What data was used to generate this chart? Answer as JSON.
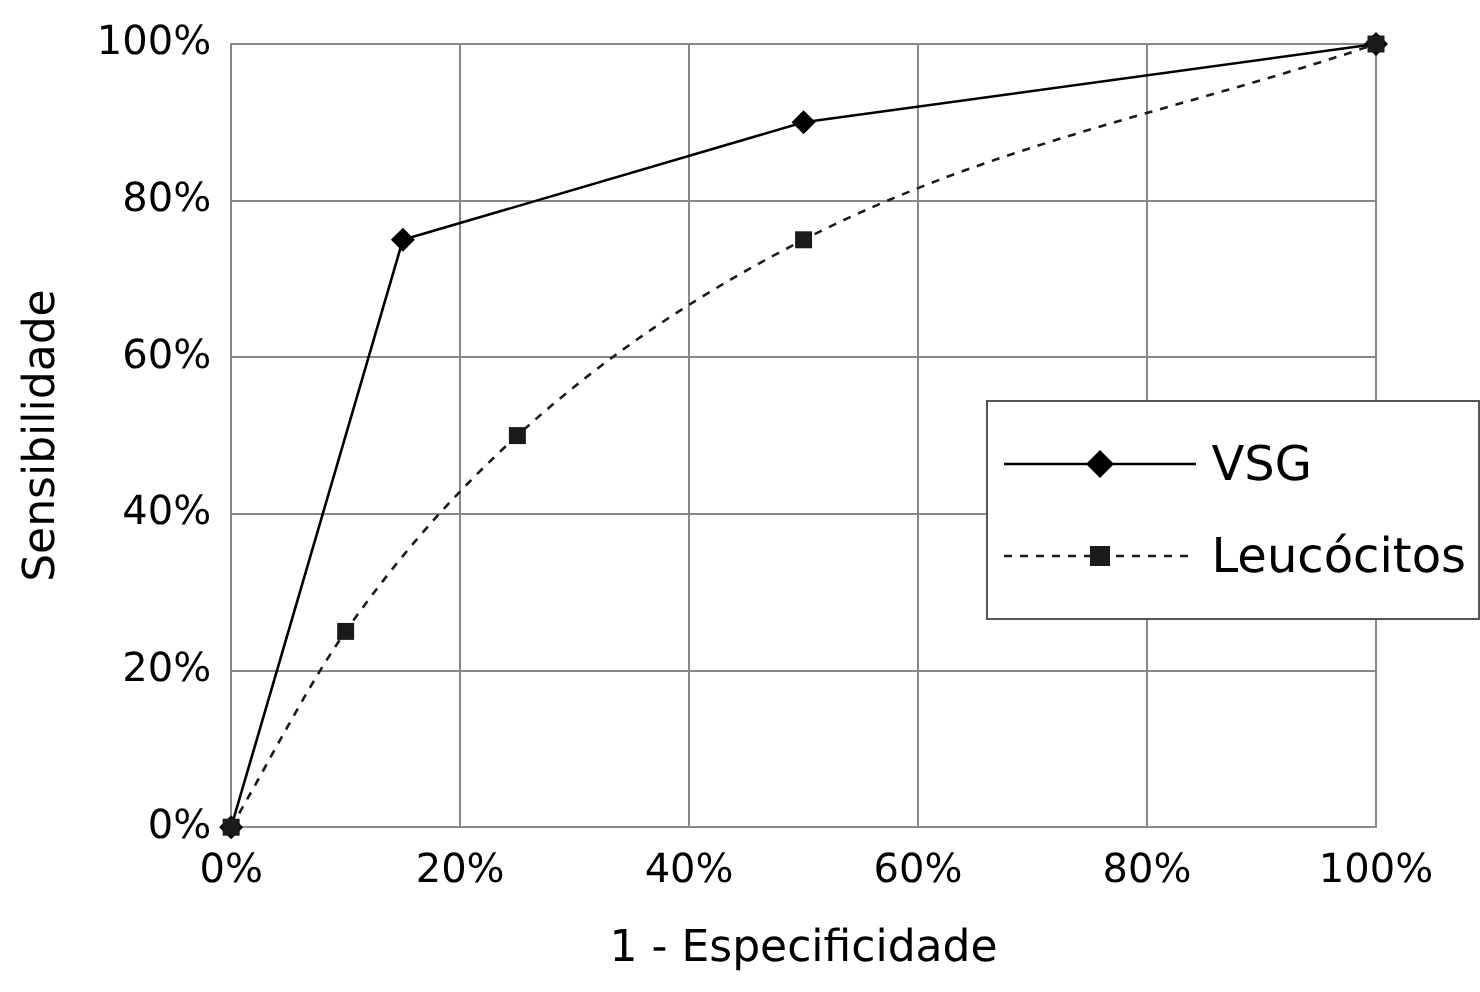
{
  "chart_data": {
    "type": "line",
    "xlabel": "1 - Especificidade",
    "ylabel": "Sensibilidade",
    "xlim": [
      0,
      100
    ],
    "ylim": [
      0,
      100
    ],
    "xticks": [
      {
        "value": 0,
        "label": "0%"
      },
      {
        "value": 20,
        "label": "20%"
      },
      {
        "value": 40,
        "label": "40%"
      },
      {
        "value": 60,
        "label": "60%"
      },
      {
        "value": 80,
        "label": "80%"
      },
      {
        "value": 100,
        "label": "100%"
      }
    ],
    "yticks": [
      {
        "value": 0,
        "label": "0%"
      },
      {
        "value": 20,
        "label": "20%"
      },
      {
        "value": 40,
        "label": "40%"
      },
      {
        "value": 60,
        "label": "60%"
      },
      {
        "value": 80,
        "label": "80%"
      },
      {
        "value": 100,
        "label": "100%"
      }
    ],
    "grid": true,
    "legend": "right",
    "series": [
      {
        "name": "VSG",
        "color": "#000000",
        "x": [
          0,
          15,
          50,
          100
        ],
        "values": [
          0,
          75,
          90,
          100
        ],
        "marker": "diamond",
        "line_style": "solid"
      },
      {
        "name": "Leucócitos",
        "color": "#1a1a1a",
        "x": [
          0,
          10,
          25,
          50,
          100
        ],
        "values": [
          0,
          25,
          50,
          75,
          100
        ],
        "marker": "square",
        "line_style": "dashed"
      }
    ]
  }
}
